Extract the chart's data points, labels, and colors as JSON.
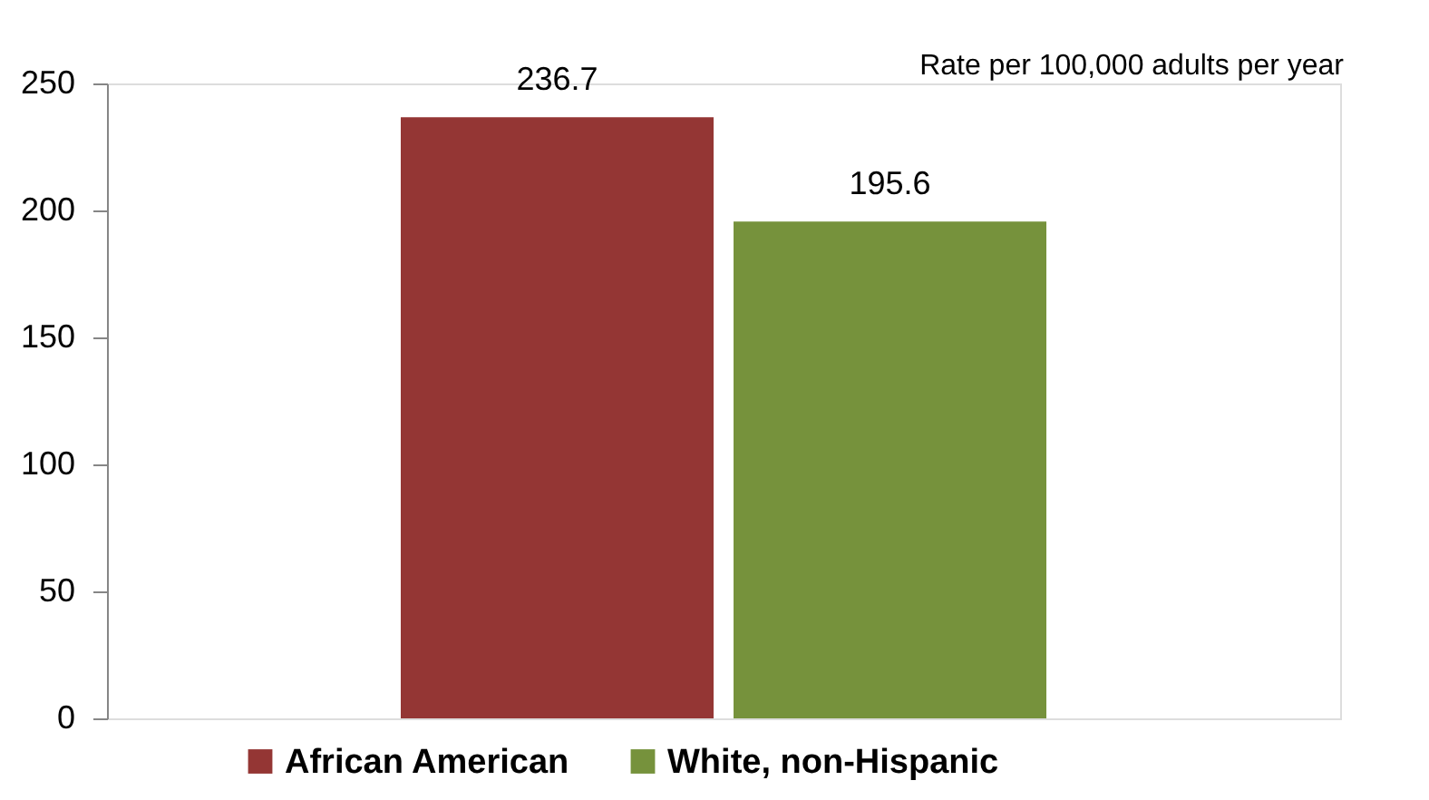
{
  "chart_data": {
    "type": "bar",
    "categories": [
      null
    ],
    "series": [
      {
        "name": "African American",
        "color": "#943634",
        "values": [
          236.7
        ]
      },
      {
        "name": "White, non-Hispanic",
        "color": "#76923c",
        "values": [
          195.6
        ]
      }
    ],
    "ylim": [
      0,
      250
    ],
    "yticks": [
      0,
      50,
      100,
      150,
      200,
      250
    ],
    "annotations": [
      "Rate per 100,000 adults per year"
    ],
    "data_labels": true,
    "grid": false,
    "legend": "bottom"
  }
}
